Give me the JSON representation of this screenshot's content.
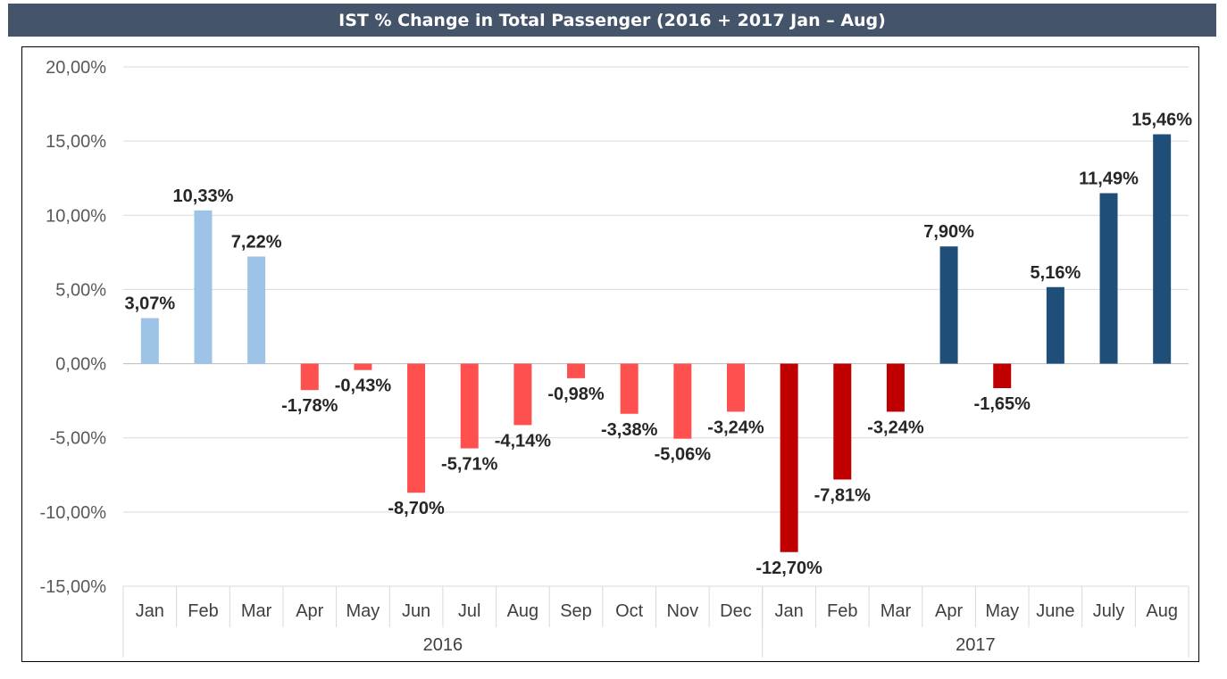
{
  "title": "IST % Change in Total Passenger (2016 + 2017 Jan – Aug)",
  "colors": {
    "title_bg": "#44546a",
    "pos_2016": "#9dc3e6",
    "neg_2016": "#ff5050",
    "pos_2017": "#1f4e79",
    "neg_2017": "#c00000",
    "grid": "#d9d9d9"
  },
  "chart_data": {
    "type": "bar",
    "title": "IST % Change in Total Passenger (2016 + 2017 Jan – Aug)",
    "xlabel": "",
    "ylabel": "",
    "ylim": [
      -15,
      20
    ],
    "yticks": [
      20,
      15,
      10,
      5,
      0,
      -5,
      -10,
      -15
    ],
    "ytick_labels": [
      "20,00%",
      "15,00%",
      "10,00%",
      "5,00%",
      "0,00%",
      "-5,00%",
      "-10,00%",
      "-15,00%"
    ],
    "grid": true,
    "legend": "none",
    "groups": [
      {
        "name": "2016",
        "categories": [
          "Jan",
          "Feb",
          "Mar",
          "Apr",
          "May",
          "Jun",
          "Jul",
          "Aug",
          "Sep",
          "Oct",
          "Nov",
          "Dec"
        ],
        "values": [
          3.07,
          10.33,
          7.22,
          -1.78,
          -0.43,
          -8.7,
          -5.71,
          -4.14,
          -0.98,
          -3.38,
          -5.06,
          -3.24
        ],
        "labels": [
          "3,07%",
          "10,33%",
          "7,22%",
          "-1,78%",
          "-0,43%",
          "-8,70%",
          "-5,71%",
          "-4,14%",
          "-0,98%",
          "-3,38%",
          "-5,06%",
          "-3,24%"
        ]
      },
      {
        "name": "2017",
        "categories": [
          "Jan",
          "Feb",
          "Mar",
          "Apr",
          "May",
          "June",
          "July",
          "Aug"
        ],
        "values": [
          -12.7,
          -7.81,
          -3.24,
          7.9,
          -1.65,
          5.16,
          11.49,
          15.46
        ],
        "labels": [
          "-12,70%",
          "-7,81%",
          "-3,24%",
          "7,90%",
          "-1,65%",
          "5,16%",
          "11,49%",
          "15,46%"
        ]
      }
    ]
  }
}
